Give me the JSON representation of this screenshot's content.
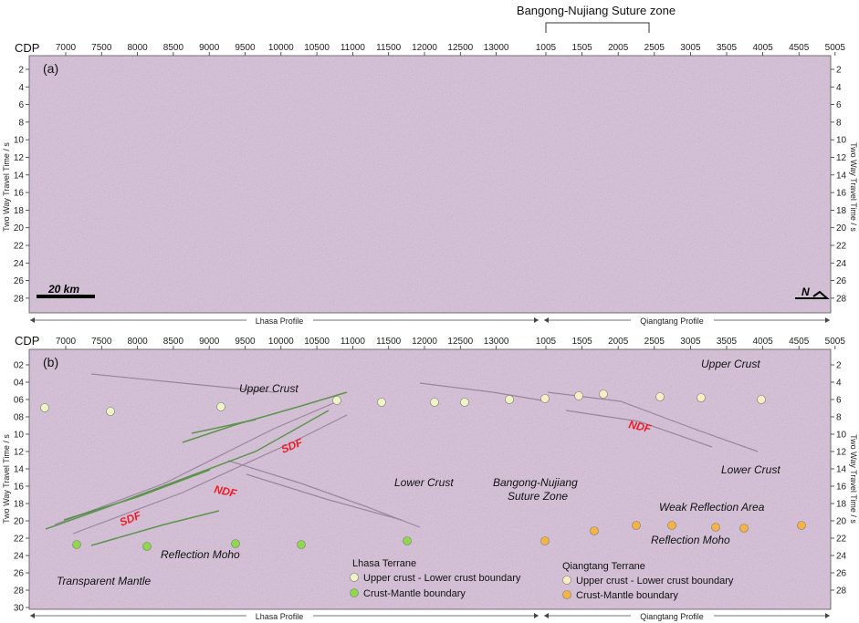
{
  "suture_header": "Bangong-Nujiang Suture zone",
  "cdp_label": "CDP",
  "cdp_ticks_lhasa": [
    "7000",
    "7500",
    "8000",
    "8500",
    "9000",
    "9500",
    "10000",
    "10500",
    "11000",
    "11500",
    "12000",
    "12500",
    "13000"
  ],
  "cdp_ticks_qiangtang": [
    "1005",
    "1505",
    "2005",
    "2505",
    "3005",
    "3505",
    "4005",
    "4505",
    "5005"
  ],
  "yaxis_title": "Two Way Travel Time / s",
  "panel_a": {
    "tag": "(a)",
    "ticks": [
      "2",
      "4",
      "6",
      "8",
      "10",
      "12",
      "14",
      "16",
      "18",
      "20",
      "22",
      "24",
      "26",
      "28"
    ],
    "scale_label": "20 km",
    "north_label": "N"
  },
  "panel_b": {
    "tag": "(b)",
    "ticks_left": [
      "02",
      "04",
      "06",
      "08",
      "10",
      "12",
      "14",
      "16",
      "18",
      "20",
      "22",
      "24",
      "26",
      "28",
      "30"
    ],
    "ticks_right": [
      "2",
      "4",
      "6",
      "8",
      "10",
      "12",
      "14",
      "16",
      "18",
      "20",
      "22",
      "24",
      "26",
      "28"
    ],
    "labels": {
      "upper_crust_l": "Upper Crust",
      "upper_crust_r": "Upper Crust",
      "lower_crust_l": "Lower Crust",
      "lower_crust_r": "Lower Crust",
      "suture_1": "Bangong-Nujiang",
      "suture_2": "Suture Zone",
      "weak": "Weak Reflection Area",
      "moho_l": "Reflection Moho",
      "moho_r": "Reflection Moho",
      "mantle": "Transparent Mantle",
      "sdf_1": "SDF",
      "sdf_2": "SDF",
      "ndf_1": "NDF",
      "ndf_2": "NDF"
    },
    "legend_lhasa": {
      "title": "Lhasa Terrane",
      "item_upper": "Upper crust - Lower crust boundary",
      "item_moho": "Crust-Mantle boundary"
    },
    "legend_qiangtang": {
      "title": "Qiangtang Terrane",
      "item_upper": "Upper crust - Lower crust boundary",
      "item_moho": "Crust-Mantle boundary"
    }
  },
  "profile_lhasa": "Lhasa Profile",
  "profile_qiangtang": "Qiangtang Profile",
  "colors": {
    "seismic_bg": "#d7bfd9",
    "lhasa_upper": "#eef5c5",
    "lhasa_moho": "#8ed84a",
    "qiangtang_upper": "#fbedc3",
    "qiangtang_moho": "#f7b341",
    "fault_label": "#ee1c25",
    "fault_trace": "#3f8a2a"
  }
}
